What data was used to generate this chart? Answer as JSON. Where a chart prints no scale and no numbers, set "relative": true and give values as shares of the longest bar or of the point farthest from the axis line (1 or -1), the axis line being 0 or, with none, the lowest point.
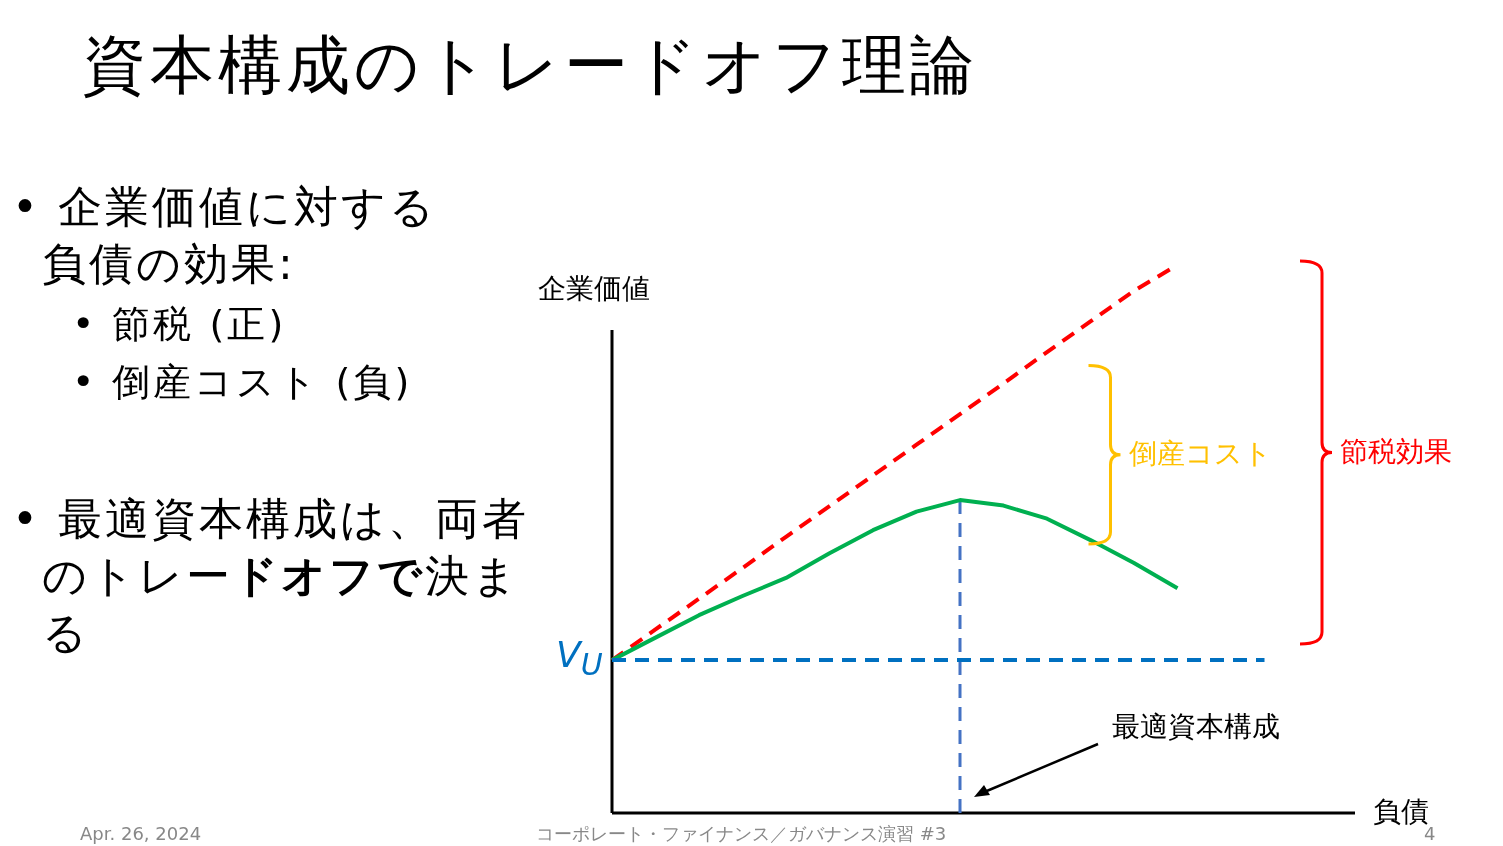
{
  "chart_data": {
    "type": "line",
    "title": "資本構成のトレードオフ理論",
    "xlabel": "負債",
    "ylabel": "企業価値",
    "relative": true,
    "categories": [
      null,
      null,
      null,
      null,
      null,
      null,
      null,
      null,
      null,
      null,
      null,
      null,
      null,
      null,
      null,
      null
    ],
    "series": [
      {
        "color": "#ff0000",
        "line_style": "dashed",
        "values": [
          0.279,
          0.335,
          0.391,
          0.447,
          0.504,
          0.56,
          0.616,
          0.672,
          0.728,
          0.784,
          0.841,
          0.897,
          0.953,
          1.0,
          null,
          null
        ]
      },
      {
        "color": "#00b050",
        "line_style": "solid",
        "values": [
          0.279,
          0.32,
          0.361,
          0.396,
          0.429,
          0.474,
          0.516,
          0.55,
          0.571,
          0.561,
          0.537,
          0.498,
          0.456,
          0.41,
          null,
          null
        ]
      },
      {
        "color": "#0070c0",
        "line_style": "dashed",
        "values": [
          0.279,
          0.279,
          0.279,
          0.279,
          0.279,
          0.279,
          0.279,
          0.279,
          0.279,
          0.279,
          0.279,
          0.279,
          0.279,
          0.279,
          0.279,
          0.279
        ]
      }
    ],
    "annotations": [
      "V$_{U}$",
      "最適資本構成",
      "倒産コスト",
      "節税効果",
      "• 企業価値に対する負債の効果:",
      "• 節税 (正)",
      "• 倒産コスト (負)",
      "• 最適資本構成は、両者のトレー**ドオフで**決まる",
      "Apr. 26, 2024",
      "コーポレート・ファイナンス／ガバナンス演習 #3",
      "4"
    ]
  }
}
